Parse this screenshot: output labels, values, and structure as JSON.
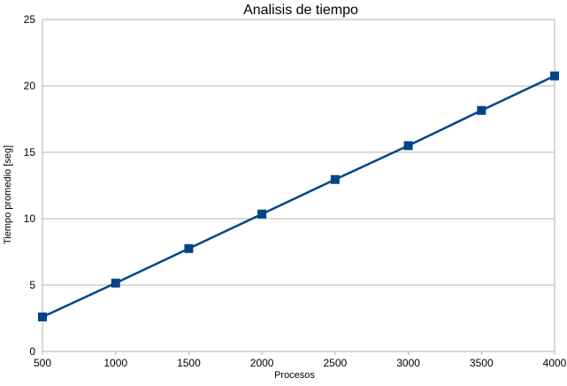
{
  "chart_data": {
    "type": "line",
    "title": "Analisis de tiempo",
    "xlabel": "Procesos",
    "ylabel": "Tiempo promedio [seg]",
    "x": [
      500,
      1000,
      1500,
      2000,
      2500,
      3000,
      3500,
      4000
    ],
    "series": [
      {
        "values": [
          2.6,
          5.15,
          7.75,
          10.35,
          12.95,
          15.5,
          18.15,
          20.75
        ],
        "color": "#004586",
        "marker": "square"
      }
    ],
    "xlim": [
      500,
      4000
    ],
    "ylim": [
      0,
      25
    ],
    "xticks": [
      500,
      1000,
      1500,
      2000,
      2500,
      3000,
      3500,
      4000
    ],
    "yticks": [
      0,
      5,
      10,
      15,
      20,
      25
    ],
    "grid": "horizontal",
    "legend": "none",
    "colors": {
      "gridline": "#b3b3b3",
      "axis": "#b3b3b3"
    }
  }
}
